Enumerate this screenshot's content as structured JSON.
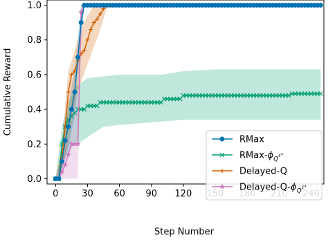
{
  "chart_data": {
    "type": "line",
    "title": "",
    "xlabel": "Step Number",
    "ylabel": "Cumulative Reward",
    "xlim": [
      -8,
      252
    ],
    "ylim": [
      -0.03,
      1.03
    ],
    "xticks": [
      0,
      30,
      60,
      90,
      120,
      150,
      180,
      210,
      240
    ],
    "xtick_labels": [
      "0",
      "30",
      "60",
      "90",
      "120",
      "150",
      "180",
      "210",
      "240"
    ],
    "yticks": [
      0.0,
      0.2,
      0.4,
      0.6,
      0.8,
      1.0
    ],
    "ytick_labels": [
      "0.0",
      "0.2",
      "0.4",
      "0.6",
      "0.8",
      "1.0"
    ],
    "grid": false,
    "legend_position": "lower-right",
    "series": [
      {
        "name": "RMax",
        "legend_main": "RMax",
        "legend_sub": "",
        "color": "#0173b2",
        "marker": "circle",
        "x": [
          0,
          3,
          6,
          9,
          12,
          15,
          18,
          21,
          24,
          27,
          30,
          33,
          36,
          39,
          42,
          45,
          48,
          51,
          54,
          57,
          60,
          63,
          66,
          69,
          72,
          75,
          78,
          81,
          84,
          87,
          90,
          93,
          96,
          99,
          102,
          105,
          108,
          111,
          114,
          117,
          120,
          123,
          126,
          129,
          132,
          135,
          138,
          141,
          144,
          147,
          150,
          153,
          156,
          159,
          162,
          165,
          168,
          171,
          174,
          177,
          180,
          183,
          186,
          189,
          192,
          195,
          198,
          201,
          204,
          207,
          210,
          213,
          216,
          219,
          222,
          225,
          228,
          231,
          234,
          237,
          240,
          243,
          246,
          249
        ],
        "y": [
          0.0,
          0.0,
          0.1,
          0.22,
          0.3,
          0.4,
          0.5,
          0.7,
          0.9,
          1.0,
          1.0,
          1.0,
          1.0,
          1.0,
          1.0,
          1.0,
          1.0,
          1.0,
          1.0,
          1.0,
          1.0,
          1.0,
          1.0,
          1.0,
          1.0,
          1.0,
          1.0,
          1.0,
          1.0,
          1.0,
          1.0,
          1.0,
          1.0,
          1.0,
          1.0,
          1.0,
          1.0,
          1.0,
          1.0,
          1.0,
          1.0,
          1.0,
          1.0,
          1.0,
          1.0,
          1.0,
          1.0,
          1.0,
          1.0,
          1.0,
          1.0,
          1.0,
          1.0,
          1.0,
          1.0,
          1.0,
          1.0,
          1.0,
          1.0,
          1.0,
          1.0,
          1.0,
          1.0,
          1.0,
          1.0,
          1.0,
          1.0,
          1.0,
          1.0,
          1.0,
          1.0,
          1.0,
          1.0,
          1.0,
          1.0,
          1.0,
          1.0,
          1.0,
          1.0,
          1.0,
          1.0,
          1.0,
          1.0,
          1.0
        ],
        "band_x": [
          0,
          6,
          12,
          18,
          24,
          27,
          30
        ],
        "band_low": [
          0.0,
          0.04,
          0.18,
          0.36,
          0.78,
          1.0,
          1.0
        ],
        "band_high": [
          0.0,
          0.16,
          0.42,
          0.64,
          1.0,
          1.0,
          1.0
        ]
      },
      {
        "name": "RMax-phi",
        "legend_main": "RMax-",
        "legend_sub": "Q",
        "color": "#029e73",
        "marker": "x",
        "x": [
          0,
          3,
          6,
          9,
          12,
          15,
          18,
          21,
          24,
          27,
          30,
          33,
          36,
          39,
          42,
          45,
          48,
          51,
          54,
          57,
          60,
          63,
          66,
          69,
          72,
          75,
          78,
          81,
          84,
          87,
          90,
          93,
          96,
          99,
          102,
          105,
          108,
          111,
          114,
          117,
          120,
          123,
          126,
          129,
          132,
          135,
          138,
          141,
          144,
          147,
          150,
          153,
          156,
          159,
          162,
          165,
          168,
          171,
          174,
          177,
          180,
          183,
          186,
          189,
          192,
          195,
          198,
          201,
          204,
          207,
          210,
          213,
          216,
          219,
          222,
          225,
          228,
          231,
          234,
          237,
          240,
          243,
          246,
          249
        ],
        "y": [
          0.0,
          0.0,
          0.2,
          0.3,
          0.34,
          0.36,
          0.38,
          0.4,
          0.4,
          0.4,
          0.42,
          0.42,
          0.42,
          0.42,
          0.44,
          0.44,
          0.44,
          0.44,
          0.44,
          0.44,
          0.44,
          0.44,
          0.44,
          0.44,
          0.44,
          0.44,
          0.44,
          0.44,
          0.44,
          0.44,
          0.44,
          0.44,
          0.44,
          0.44,
          0.46,
          0.46,
          0.46,
          0.46,
          0.46,
          0.46,
          0.48,
          0.48,
          0.48,
          0.48,
          0.48,
          0.48,
          0.48,
          0.48,
          0.48,
          0.48,
          0.48,
          0.48,
          0.48,
          0.48,
          0.48,
          0.48,
          0.48,
          0.48,
          0.48,
          0.48,
          0.48,
          0.48,
          0.48,
          0.48,
          0.48,
          0.48,
          0.48,
          0.48,
          0.48,
          0.48,
          0.48,
          0.48,
          0.48,
          0.48,
          0.49,
          0.49,
          0.49,
          0.49,
          0.49,
          0.49,
          0.49,
          0.49,
          0.49,
          0.49
        ],
        "band_x": [
          0,
          6,
          12,
          18,
          21,
          30,
          45,
          60,
          100,
          120,
          150,
          200,
          249
        ],
        "band_low": [
          0.0,
          0.08,
          0.16,
          0.2,
          0.2,
          0.24,
          0.3,
          0.31,
          0.33,
          0.34,
          0.34,
          0.34,
          0.34
        ],
        "band_high": [
          0.0,
          0.3,
          0.44,
          0.52,
          0.54,
          0.58,
          0.59,
          0.6,
          0.6,
          0.62,
          0.63,
          0.63,
          0.63
        ]
      },
      {
        "name": "Delayed-Q",
        "legend_main": "Delayed-Q",
        "legend_sub": "",
        "color": "#d55e00",
        "marker": "plus",
        "x": [
          0,
          3,
          6,
          9,
          12,
          15,
          18,
          21,
          24,
          27,
          30,
          33,
          36,
          39,
          42,
          45,
          48,
          51,
          54,
          57,
          60,
          63,
          66,
          69,
          72,
          75,
          78,
          81,
          84,
          87,
          90,
          93,
          96,
          99,
          102,
          105,
          108,
          111,
          114,
          117,
          120,
          123,
          126,
          129,
          132,
          135,
          138,
          141,
          144,
          147,
          150,
          153,
          156,
          159,
          162,
          165,
          168,
          171,
          174,
          177,
          180,
          183,
          186,
          189,
          192,
          195,
          198,
          201,
          204,
          207,
          210,
          213,
          216,
          219,
          222,
          225,
          228,
          231,
          234,
          237,
          240,
          243,
          246,
          249
        ],
        "y": [
          0.0,
          0.0,
          0.12,
          0.3,
          0.5,
          0.6,
          0.62,
          0.68,
          0.72,
          0.74,
          0.8,
          0.86,
          0.9,
          0.92,
          0.95,
          0.98,
          1.0,
          1.0,
          1.0,
          1.0,
          1.0,
          1.0,
          1.0,
          1.0,
          1.0,
          1.0,
          1.0,
          1.0,
          1.0,
          1.0,
          1.0,
          1.0,
          1.0,
          1.0,
          1.0,
          1.0,
          1.0,
          1.0,
          1.0,
          1.0,
          1.0,
          1.0,
          1.0,
          1.0,
          1.0,
          1.0,
          1.0,
          1.0,
          1.0,
          1.0,
          1.0,
          1.0,
          1.0,
          1.0,
          1.0,
          1.0,
          1.0,
          1.0,
          1.0,
          1.0,
          1.0,
          1.0,
          1.0,
          1.0,
          1.0,
          1.0,
          1.0,
          1.0,
          1.0,
          1.0,
          1.0,
          1.0,
          1.0,
          1.0,
          1.0,
          1.0,
          1.0,
          1.0,
          1.0,
          1.0,
          1.0,
          1.0,
          1.0,
          1.0
        ],
        "band_x": [
          0,
          6,
          12,
          18,
          24,
          30,
          36,
          42,
          48,
          50
        ],
        "band_low": [
          0.0,
          0.04,
          0.22,
          0.44,
          0.56,
          0.66,
          0.76,
          0.86,
          0.98,
          1.0
        ],
        "band_high": [
          0.0,
          0.2,
          0.62,
          0.74,
          0.86,
          0.94,
          1.0,
          1.0,
          1.0,
          1.0
        ]
      },
      {
        "name": "Delayed-Q-phi",
        "legend_main": "Delayed-Q-",
        "legend_sub": "Q",
        "color": "#cc78bc",
        "marker": "star",
        "x": [
          0,
          3,
          6,
          9,
          12,
          15,
          18,
          21,
          24,
          27,
          30,
          33,
          36,
          39,
          42,
          45,
          48,
          51,
          54,
          57,
          60,
          63,
          66,
          69,
          72,
          75,
          78,
          81,
          84,
          87,
          90,
          93,
          96,
          99,
          102,
          105,
          108,
          111,
          114,
          117,
          120,
          123,
          126,
          129,
          132,
          135,
          138,
          141,
          144,
          147,
          150,
          153,
          156,
          159,
          162,
          165,
          168,
          171,
          174,
          177,
          180,
          183,
          186,
          189,
          192,
          195,
          198,
          201,
          204,
          207,
          210,
          213,
          216,
          219,
          222,
          225,
          228,
          231,
          234,
          237,
          240,
          243,
          246,
          249
        ],
        "y": [
          0.0,
          0.0,
          0.04,
          0.08,
          0.14,
          0.2,
          0.2,
          0.2,
          0.96,
          1.0,
          1.0,
          1.0,
          1.0,
          1.0,
          1.0,
          1.0,
          1.0,
          1.0,
          1.0,
          1.0,
          1.0,
          1.0,
          1.0,
          1.0,
          1.0,
          1.0,
          1.0,
          1.0,
          1.0,
          1.0,
          1.0,
          1.0,
          1.0,
          1.0,
          1.0,
          1.0,
          1.0,
          1.0,
          1.0,
          1.0,
          1.0,
          1.0,
          1.0,
          1.0,
          1.0,
          1.0,
          1.0,
          1.0,
          1.0,
          1.0,
          1.0,
          1.0,
          1.0,
          1.0,
          1.0,
          1.0,
          1.0,
          1.0,
          1.0,
          1.0,
          1.0,
          1.0,
          1.0,
          1.0,
          1.0,
          1.0,
          1.0,
          1.0,
          1.0,
          1.0,
          1.0,
          1.0,
          1.0,
          1.0,
          1.0,
          1.0,
          1.0,
          1.0,
          1.0,
          1.0,
          1.0,
          1.0,
          1.0,
          1.0
        ],
        "band_x": [
          0,
          6,
          12,
          18,
          21,
          24,
          27,
          30
        ],
        "band_low": [
          0.0,
          0.0,
          0.0,
          0.0,
          0.0,
          0.9,
          1.0,
          1.0
        ],
        "band_high": [
          0.0,
          0.1,
          0.24,
          0.46,
          0.5,
          1.0,
          1.0,
          1.0
        ]
      }
    ]
  }
}
